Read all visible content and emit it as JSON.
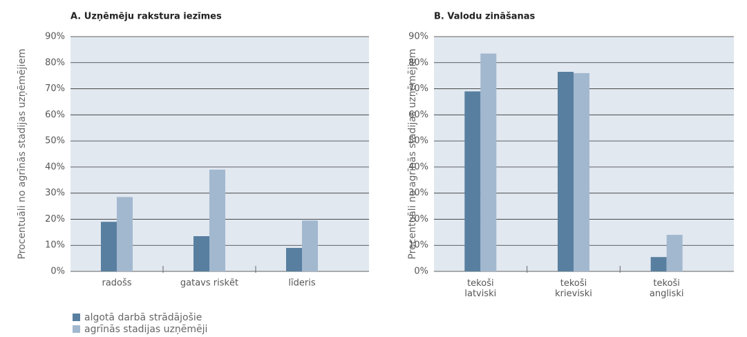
{
  "legend": [
    {
      "name": "algotā darbā strādājošie",
      "color": "#587fa0"
    },
    {
      "name": "agrīnās stadijas uzņēmēji",
      "color": "#a2b8cf"
    }
  ],
  "chart_data": [
    {
      "type": "bar",
      "title": "A. Uzņēmēju rakstura iezīmes",
      "ylabel": "Procentuāli no agrīnās stadijas uzņēmējiem",
      "categories": [
        "radošs",
        "gatavs riskēt",
        "līderis"
      ],
      "series": [
        {
          "values": [
            19,
            13.5,
            9
          ]
        },
        {
          "values": [
            28.5,
            39,
            19.5
          ]
        }
      ],
      "ylim": [
        0,
        90
      ],
      "yticks": [
        {
          "value": 0,
          "label": "0%"
        },
        {
          "value": 10,
          "label": "10%"
        },
        {
          "value": 20,
          "label": "20%"
        },
        {
          "value": 30,
          "label": "30%"
        },
        {
          "value": 40,
          "label": "40%"
        },
        {
          "value": 50,
          "label": "50%"
        },
        {
          "value": 60,
          "label": "60%"
        },
        {
          "value": 70,
          "label": "70%"
        },
        {
          "value": 80,
          "label": "80%"
        },
        {
          "value": 90,
          "label": "90%"
        }
      ],
      "grid": true
    },
    {
      "type": "bar",
      "title": "B. Valodu zināšanas",
      "ylabel": "Procentuāli no agrīnās stadijas uzņēmējiem",
      "categories": [
        "tekoši\nlatviski",
        "tekoši\nkrieviski",
        "tekoši\nangliski"
      ],
      "series": [
        {
          "values": [
            69,
            76.5,
            5.5
          ]
        },
        {
          "values": [
            83.5,
            76,
            14
          ]
        }
      ],
      "ylim": [
        0,
        90
      ],
      "yticks": [
        {
          "value": 0,
          "label": "0%"
        },
        {
          "value": 10,
          "label": "10%"
        },
        {
          "value": 20,
          "label": "20%"
        },
        {
          "value": 30,
          "label": "30%"
        },
        {
          "value": 40,
          "label": "40%"
        },
        {
          "value": 50,
          "label": "50%"
        },
        {
          "value": 60,
          "label": "60%"
        },
        {
          "value": 70,
          "label": "70%"
        },
        {
          "value": 80,
          "label": "80%"
        },
        {
          "value": 90,
          "label": "90%"
        }
      ],
      "grid": true
    }
  ]
}
